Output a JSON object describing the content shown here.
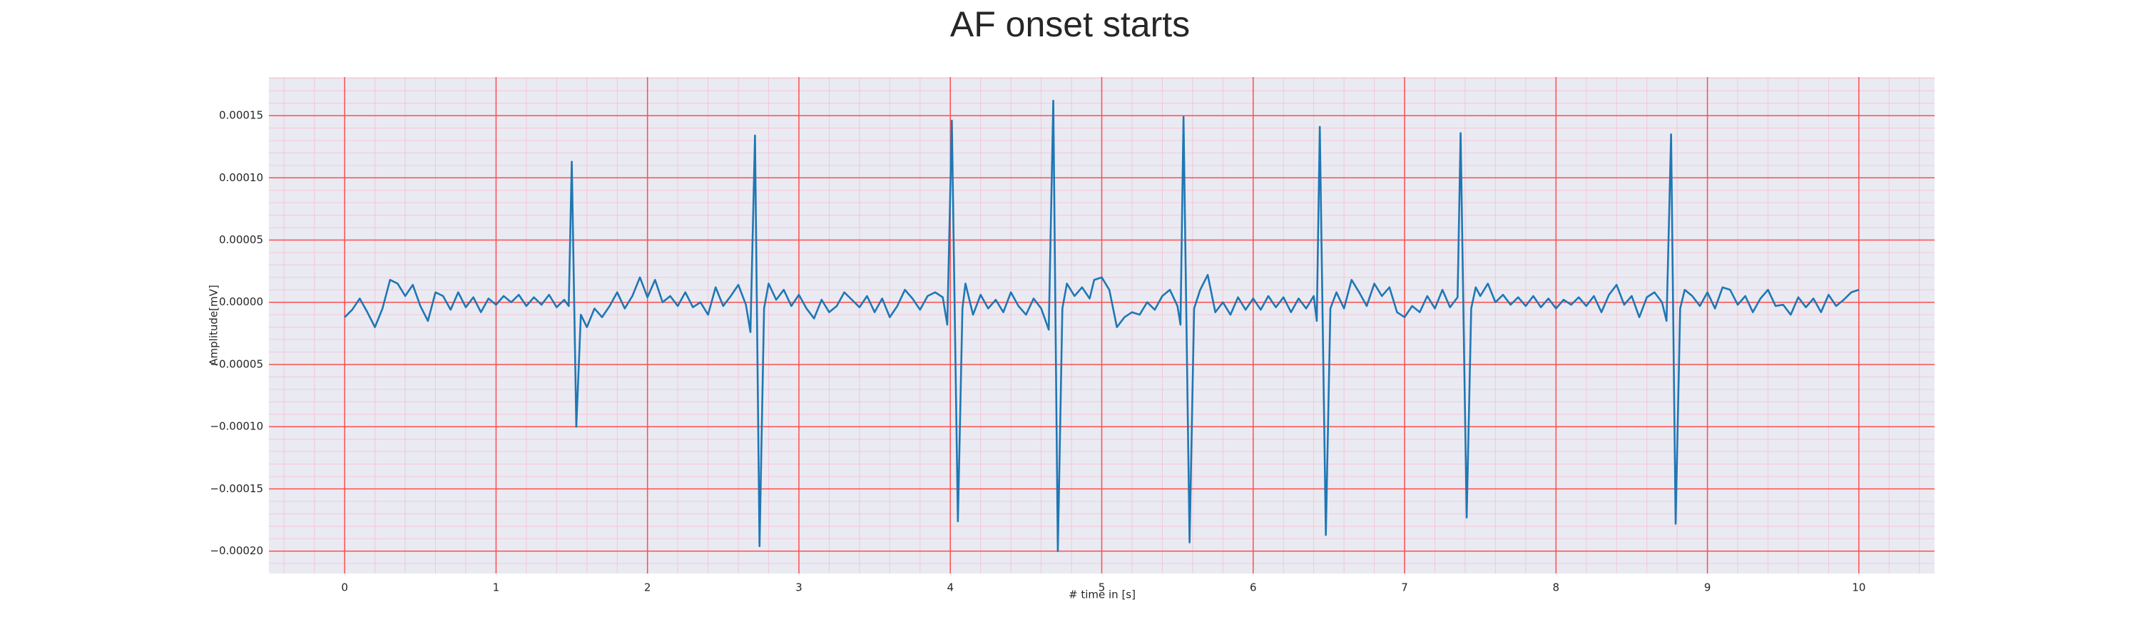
{
  "chart_data": {
    "type": "line",
    "title": "AF onset starts",
    "xlabel": "# time in [s]",
    "ylabel": "Amplitude[mV]",
    "color": "#1f77b4",
    "grid": true,
    "grid_color": "#ff4d4d",
    "minor_grid_color": "#f7b3c6",
    "background": "#eaeaf2",
    "minor_grid_step": {
      "x": 0.2,
      "y": 1e-05
    },
    "xlim": [
      -0.5,
      10.5
    ],
    "xticks": [
      0,
      1,
      2,
      3,
      4,
      5,
      6,
      7,
      8,
      9,
      10
    ],
    "ylim": [
      -0.000218,
      0.000181
    ],
    "yticks": [
      {
        "value": -0.0002,
        "label": "−0.00020"
      },
      {
        "value": -0.00015,
        "label": "−0.00015"
      },
      {
        "value": -0.0001,
        "label": "−0.00010"
      },
      {
        "value": -5e-05,
        "label": "−0.00005"
      },
      {
        "value": 0,
        "label": "0.00000"
      },
      {
        "value": 5e-05,
        "label": "0.00005"
      },
      {
        "value": 0.0001,
        "label": "0.00010"
      },
      {
        "value": 0.00015,
        "label": "0.00015"
      }
    ],
    "x": [
      0,
      0.05,
      0.1,
      0.15,
      0.2,
      0.25,
      0.3,
      0.35,
      0.4,
      0.45,
      0.5,
      0.55,
      0.6,
      0.65,
      0.7,
      0.75,
      0.8,
      0.85,
      0.9,
      0.95,
      1.0,
      1.05,
      1.1,
      1.15,
      1.2,
      1.25,
      1.3,
      1.35,
      1.4,
      1.45,
      1.48,
      1.5,
      1.53,
      1.56,
      1.6,
      1.65,
      1.7,
      1.75,
      1.8,
      1.85,
      1.9,
      1.95,
      2.0,
      2.05,
      2.1,
      2.15,
      2.2,
      2.25,
      2.3,
      2.35,
      2.4,
      2.45,
      2.5,
      2.55,
      2.6,
      2.65,
      2.68,
      2.71,
      2.74,
      2.77,
      2.8,
      2.85,
      2.9,
      2.95,
      3.0,
      3.05,
      3.1,
      3.15,
      3.2,
      3.25,
      3.3,
      3.35,
      3.4,
      3.45,
      3.5,
      3.55,
      3.6,
      3.65,
      3.7,
      3.75,
      3.8,
      3.85,
      3.9,
      3.95,
      3.98,
      4.01,
      4.05,
      4.08,
      4.1,
      4.15,
      4.2,
      4.25,
      4.3,
      4.35,
      4.4,
      4.45,
      4.5,
      4.55,
      4.6,
      4.65,
      4.68,
      4.71,
      4.74,
      4.77,
      4.82,
      4.87,
      4.92,
      4.95,
      5.0,
      5.05,
      5.1,
      5.15,
      5.2,
      5.25,
      5.3,
      5.35,
      5.4,
      5.45,
      5.5,
      5.52,
      5.54,
      5.58,
      5.61,
      5.65,
      5.7,
      5.75,
      5.8,
      5.85,
      5.9,
      5.95,
      6.0,
      6.05,
      6.1,
      6.15,
      6.2,
      6.25,
      6.3,
      6.35,
      6.4,
      6.42,
      6.44,
      6.48,
      6.51,
      6.55,
      6.6,
      6.65,
      6.7,
      6.75,
      6.8,
      6.85,
      6.9,
      6.95,
      7.0,
      7.05,
      7.1,
      7.15,
      7.2,
      7.25,
      7.3,
      7.35,
      7.37,
      7.41,
      7.44,
      7.47,
      7.5,
      7.55,
      7.6,
      7.65,
      7.7,
      7.75,
      7.8,
      7.85,
      7.9,
      7.95,
      8.0,
      8.05,
      8.1,
      8.15,
      8.2,
      8.25,
      8.3,
      8.35,
      8.4,
      8.45,
      8.5,
      8.55,
      8.6,
      8.65,
      8.7,
      8.73,
      8.76,
      8.79,
      8.82,
      8.85,
      8.9,
      8.95,
      9.0,
      9.05,
      9.1,
      9.15,
      9.2,
      9.25,
      9.3,
      9.35,
      9.4,
      9.45,
      9.5,
      9.55,
      9.6,
      9.65,
      9.7,
      9.75,
      9.8,
      9.85,
      9.9,
      9.95,
      10.0
    ],
    "values": [
      -1.2e-05,
      -6e-06,
      3e-06,
      -8e-06,
      -2e-05,
      -5e-06,
      1.8e-05,
      1.5e-05,
      5e-06,
      1.4e-05,
      -3e-06,
      -1.5e-05,
      8e-06,
      5e-06,
      -6e-06,
      8e-06,
      -4e-06,
      4e-06,
      -8e-06,
      3e-06,
      -2e-06,
      5e-06,
      0,
      6e-06,
      -3e-06,
      4e-06,
      -2e-06,
      6e-06,
      -4e-06,
      2e-06,
      -3e-06,
      0.000113,
      -0.0001,
      -1e-05,
      -2e-05,
      -5e-06,
      -1.2e-05,
      -3e-06,
      8e-06,
      -5e-06,
      5e-06,
      2e-05,
      4e-06,
      1.8e-05,
      0,
      5e-06,
      -3e-06,
      8e-06,
      -4e-06,
      0,
      -1e-05,
      1.2e-05,
      -3e-06,
      5e-06,
      1.4e-05,
      -2e-06,
      -2.4e-05,
      0.000134,
      -0.000196,
      -5e-06,
      1.5e-05,
      2e-06,
      1e-05,
      -3e-06,
      6e-06,
      -5e-06,
      -1.3e-05,
      2e-06,
      -8e-06,
      -3e-06,
      8e-06,
      2e-06,
      -4e-06,
      5e-06,
      -8e-06,
      3e-06,
      -1.2e-05,
      -3e-06,
      1e-05,
      3e-06,
      -6e-06,
      5e-06,
      8e-06,
      4e-06,
      -1.8e-05,
      0.000146,
      -0.000176,
      -5e-06,
      1.5e-05,
      -1e-05,
      6e-06,
      -5e-06,
      2e-06,
      -8e-06,
      8e-06,
      -3e-06,
      -1e-05,
      3e-06,
      -5e-06,
      -2.2e-05,
      0.000162,
      -0.0002,
      -5e-06,
      1.5e-05,
      5e-06,
      1.2e-05,
      3e-06,
      1.8e-05,
      2e-05,
      1e-05,
      -2e-05,
      -1.2e-05,
      -8e-06,
      -1e-05,
      0,
      -6e-06,
      5e-06,
      1e-05,
      -3e-06,
      -1.8e-05,
      0.000149,
      -0.000193,
      -5e-06,
      1e-05,
      2.2e-05,
      -8e-06,
      0,
      -1e-05,
      4e-06,
      -6e-06,
      3e-06,
      -6e-06,
      5e-06,
      -4e-06,
      4e-06,
      -8e-06,
      3e-06,
      -5e-06,
      5e-06,
      -1.5e-05,
      0.000141,
      -0.000187,
      -5e-06,
      8e-06,
      -5e-06,
      1.8e-05,
      8e-06,
      -3e-06,
      1.5e-05,
      5e-06,
      1.2e-05,
      -8e-06,
      -1.2e-05,
      -3e-06,
      -8e-06,
      5e-06,
      -5e-06,
      1e-05,
      -4e-06,
      4e-06,
      0.000136,
      -0.000173,
      -5e-06,
      1.2e-05,
      5e-06,
      1.5e-05,
      0,
      6e-06,
      -2e-06,
      4e-06,
      -3e-06,
      5e-06,
      -4e-06,
      3e-06,
      -5e-06,
      2e-06,
      -2e-06,
      4e-06,
      -3e-06,
      5e-06,
      -8e-06,
      6e-06,
      1.4e-05,
      -2e-06,
      5e-06,
      -1.2e-05,
      4e-06,
      8e-06,
      0,
      -1.5e-05,
      0.000135,
      -0.000178,
      -5e-06,
      1e-05,
      5e-06,
      -3e-06,
      8e-06,
      -5e-06,
      1.2e-05,
      1e-05,
      -2e-06,
      5e-06,
      -8e-06,
      3e-06,
      1e-05,
      -3e-06,
      -2e-06,
      -1e-05,
      4e-06,
      -4e-06,
      3e-06,
      -8e-06,
      6e-06,
      -3e-06,
      2e-06,
      8e-06,
      1e-05
    ]
  }
}
